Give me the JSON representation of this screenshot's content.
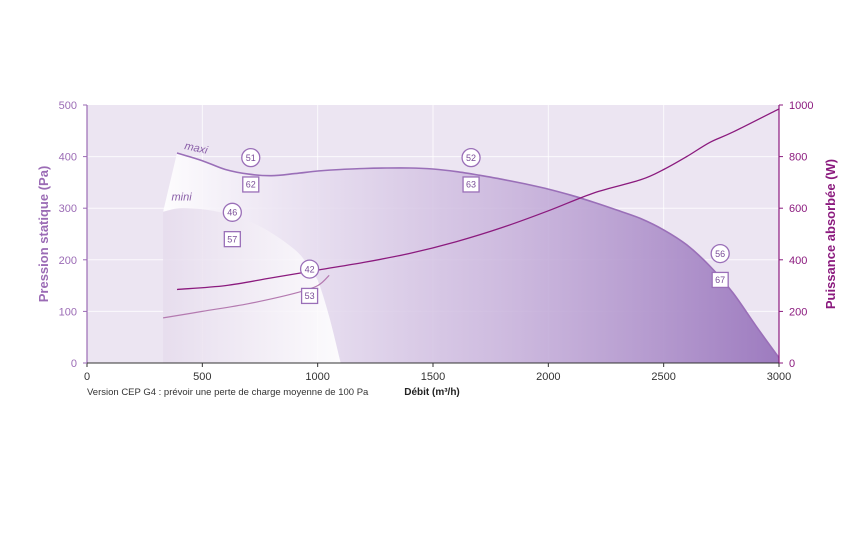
{
  "colors": {
    "pressure_axis": "#9b6bb5",
    "power_axis": "#8b1a7e",
    "plot_bg": "#ece5f2",
    "area_dark": "#a484c2",
    "curve": "#9a6fb8",
    "power_curve": "#8b1a7e",
    "power_curve_mini": "#b47ab0"
  },
  "chart_data": {
    "type": "area",
    "xlabel": "Débit (m³/h)",
    "ylabel_left": "Pression statique (Pa)",
    "ylabel_right": "Puissance absorbée (W)",
    "note": "Version CEP G4 : prévoir une perte de charge moyenne de 100 Pa",
    "xlim": [
      0,
      3000
    ],
    "ylim_left": [
      0,
      500
    ],
    "ylim_right": [
      0,
      1000
    ],
    "xticks": [
      "0",
      "500",
      "1000",
      "1500",
      "2000",
      "2500",
      "3000"
    ],
    "yticks_left": [
      "0",
      "100",
      "200",
      "300",
      "400",
      "500"
    ],
    "yticks_right": [
      "0",
      "200",
      "400",
      "600",
      "800",
      "1000"
    ],
    "grid": true,
    "series": [
      {
        "name": "maxi",
        "axis": "left",
        "x": [
          390,
          500,
          600,
          700,
          800,
          900,
          1000,
          1100,
          1200,
          1300,
          1400,
          1500,
          1600,
          1700,
          1800,
          1900,
          2000,
          2100,
          2200,
          2300,
          2400,
          2500,
          2600,
          2700,
          2800,
          2900,
          3000
        ],
        "y": [
          407,
          392,
          375,
          366,
          363,
          367,
          372,
          375,
          377,
          378,
          378,
          376,
          371,
          364,
          356,
          347,
          337,
          325,
          311,
          296,
          280,
          258,
          229,
          188,
          136,
          72,
          10
        ]
      },
      {
        "name": "mini",
        "axis": "left",
        "x": [
          330,
          400,
          500,
          600,
          700,
          800,
          900,
          950,
          1000,
          1050,
          1100
        ],
        "y": [
          293,
          300,
          298,
          290,
          275,
          252,
          220,
          195,
          160,
          90,
          0
        ]
      },
      {
        "name": "maxi",
        "axis": "right",
        "x": [
          390,
          600,
          800,
          1000,
          1200,
          1400,
          1600,
          1800,
          2000,
          2200,
          2400,
          2500,
          2600,
          2700,
          2800,
          3000
        ],
        "y": [
          285,
          300,
          330,
          360,
          390,
          425,
          470,
          525,
          590,
          660,
          710,
          750,
          800,
          855,
          895,
          985
        ]
      },
      {
        "name": "mini",
        "axis": "right",
        "x": [
          330,
          500,
          700,
          900,
          1000,
          1050
        ],
        "y": [
          175,
          200,
          230,
          270,
          300,
          340
        ]
      }
    ],
    "markers": [
      {
        "label": "51",
        "shape": "circle",
        "x": 710,
        "y": 398
      },
      {
        "label": "62",
        "shape": "square",
        "x": 710,
        "y": 346
      },
      {
        "label": "52",
        "shape": "circle",
        "x": 1665,
        "y": 398
      },
      {
        "label": "63",
        "shape": "square",
        "x": 1665,
        "y": 346
      },
      {
        "label": "46",
        "shape": "circle",
        "x": 630,
        "y": 292
      },
      {
        "label": "57",
        "shape": "square",
        "x": 630,
        "y": 240
      },
      {
        "label": "42",
        "shape": "circle",
        "x": 965,
        "y": 182
      },
      {
        "label": "53",
        "shape": "square",
        "x": 965,
        "y": 130
      },
      {
        "label": "56",
        "shape": "circle",
        "x": 2745,
        "y": 212
      },
      {
        "label": "67",
        "shape": "square",
        "x": 2745,
        "y": 161
      }
    ],
    "curve_labels": [
      {
        "label": "maxi",
        "x": 470,
        "y": 410
      },
      {
        "label": "mini",
        "x": 410,
        "y": 315
      }
    ]
  }
}
